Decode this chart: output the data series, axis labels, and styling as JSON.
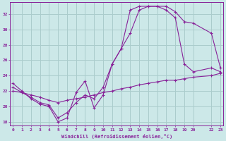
{
  "xlabel": "Windchill (Refroidissement éolien,°C)",
  "bg_color": "#cce8e8",
  "grid_color": "#aacccc",
  "line_color": "#882299",
  "ylim": [
    17.5,
    33.5
  ],
  "xlim": [
    -0.3,
    23.3
  ],
  "line1_x": [
    0,
    1,
    2,
    3,
    4,
    5,
    6,
    7,
    8,
    9,
    10,
    11,
    12,
    13,
    14,
    15,
    16,
    17,
    18,
    19,
    20,
    22,
    23
  ],
  "line1_y": [
    23.0,
    22.0,
    21.0,
    20.3,
    20.0,
    18.0,
    18.5,
    21.8,
    23.3,
    19.8,
    21.5,
    25.5,
    27.5,
    32.5,
    33.0,
    33.0,
    33.0,
    33.0,
    32.3,
    31.0,
    30.8,
    29.5,
    25.0
  ],
  "line2_x": [
    0,
    1,
    2,
    3,
    4,
    5,
    6,
    7,
    8,
    9,
    10,
    11,
    12,
    13,
    14,
    15,
    16,
    17,
    18,
    19,
    20,
    22,
    23
  ],
  "line2_y": [
    22.5,
    21.8,
    21.2,
    20.5,
    20.2,
    18.5,
    19.2,
    20.5,
    21.5,
    21.0,
    22.5,
    25.5,
    27.5,
    29.5,
    32.5,
    33.0,
    33.0,
    32.5,
    31.5,
    25.5,
    24.5,
    25.0,
    24.5
  ],
  "line3_x": [
    0,
    1,
    2,
    3,
    4,
    5,
    6,
    7,
    8,
    9,
    10,
    11,
    12,
    13,
    14,
    15,
    16,
    17,
    18,
    19,
    20,
    22,
    23
  ],
  "line3_y": [
    22.0,
    21.8,
    21.5,
    21.2,
    20.8,
    20.5,
    20.8,
    21.0,
    21.2,
    21.5,
    21.8,
    22.0,
    22.3,
    22.5,
    22.8,
    23.0,
    23.2,
    23.4,
    23.4,
    23.6,
    23.8,
    24.0,
    24.3
  ],
  "x_ticks": [
    0,
    1,
    2,
    3,
    4,
    5,
    6,
    7,
    8,
    9,
    10,
    11,
    12,
    13,
    14,
    15,
    16,
    17,
    18,
    19,
    20,
    22,
    23
  ],
  "yticks": [
    18,
    20,
    22,
    24,
    26,
    28,
    30,
    32
  ]
}
